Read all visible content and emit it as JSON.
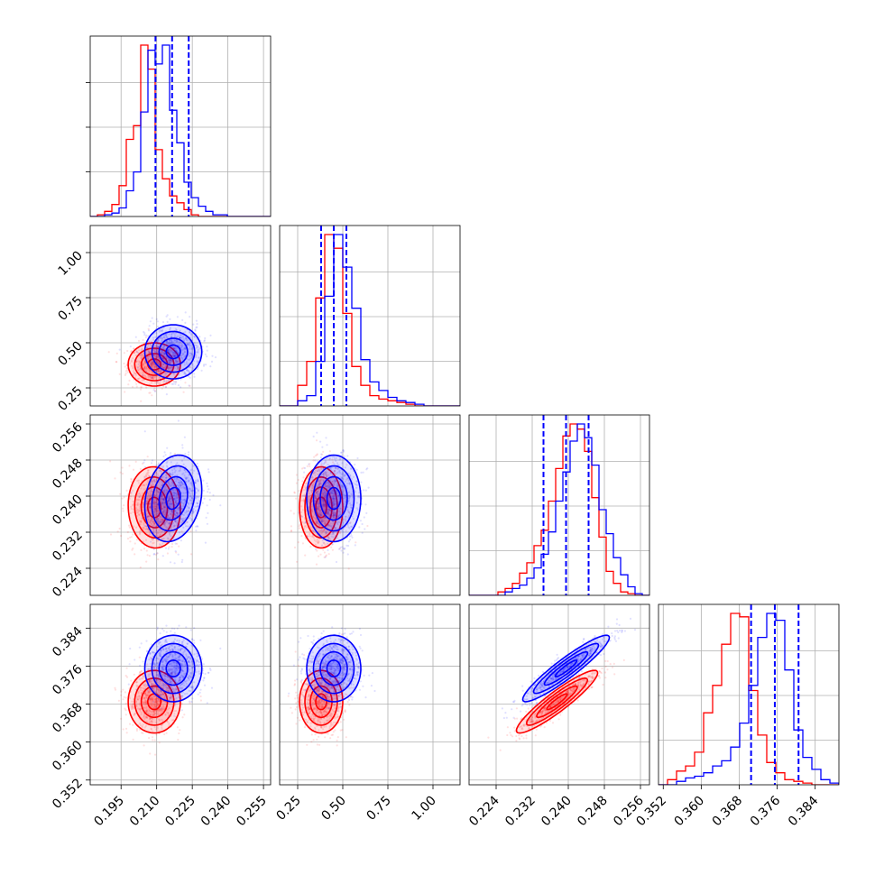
{
  "colors": {
    "red_series": "#ff0000",
    "blue_series": "#0000ff",
    "grid": "#b0b0b0"
  },
  "chart_data": {
    "type": "corner",
    "grid": true,
    "parameters": [
      {
        "ticks": [
          0.195,
          0.21,
          0.225,
          0.24,
          0.255
        ],
        "tick_labels": [
          "0.195",
          "0.210",
          "0.225",
          "0.240",
          "0.255"
        ],
        "range": [
          0.182,
          0.258
        ]
      },
      {
        "ticks": [
          0.25,
          0.5,
          0.75,
          1.0
        ],
        "tick_labels": [
          "0.25",
          "0.50",
          "0.75",
          "1.00"
        ],
        "range": [
          0.15,
          1.15
        ]
      },
      {
        "ticks": [
          0.224,
          0.232,
          0.24,
          0.248,
          0.256
        ],
        "tick_labels": [
          "0.224",
          "0.232",
          "0.240",
          "0.248",
          "0.256"
        ],
        "range": [
          0.218,
          0.258
        ]
      },
      {
        "ticks": [
          0.352,
          0.36,
          0.368,
          0.376,
          0.384
        ],
        "tick_labels": [
          "0.352",
          "0.360",
          "0.368",
          "0.376",
          "0.384"
        ],
        "range": [
          0.351,
          0.389
        ]
      }
    ],
    "series": [
      {
        "color": "#ff0000",
        "means": [
          0.209,
          0.38,
          0.2375,
          0.3685
        ],
        "sigmas": [
          0.0055,
          0.06,
          0.0045,
          0.0033
        ],
        "correlations": [
          [
            0,
            2,
            -0.05
          ],
          [
            2,
            3,
            0.92
          ]
        ],
        "histograms": [
          [
            0,
            0.01,
            0.03,
            0.07,
            0.18,
            0.45,
            0.53,
            1.0,
            0.86,
            0.39,
            0.22,
            0.12,
            0.08,
            0.04,
            0.01,
            0,
            0,
            0,
            0,
            0,
            0,
            0,
            0,
            0,
            0
          ],
          [
            0,
            0,
            0.12,
            0.26,
            0.63,
            1.0,
            0.92,
            0.54,
            0.23,
            0.12,
            0.06,
            0.04,
            0.03,
            0.02,
            0.01,
            0,
            0,
            0,
            0,
            0
          ],
          [
            0,
            0,
            0,
            0,
            0.02,
            0.04,
            0.07,
            0.13,
            0.19,
            0.29,
            0.38,
            0.55,
            0.74,
            0.93,
            1.0,
            0.97,
            0.84,
            0.57,
            0.34,
            0.14,
            0.07,
            0.02,
            0.01,
            0,
            0
          ],
          [
            0,
            0.03,
            0.08,
            0.11,
            0.19,
            0.42,
            0.58,
            0.82,
            1.0,
            0.98,
            0.55,
            0.29,
            0.13,
            0.07,
            0.03,
            0.02,
            0.01,
            0,
            0,
            0
          ]
        ]
      },
      {
        "color": "#0000ff",
        "means": [
          0.217,
          0.45,
          0.2395,
          0.3755
        ],
        "sigmas": [
          0.006,
          0.075,
          0.0048,
          0.0035
        ],
        "correlations": [
          [
            0,
            2,
            0.2
          ],
          [
            2,
            3,
            0.93
          ]
        ],
        "quantiles": [
          [
            0.2095,
            0.2165,
            0.2235
          ],
          [
            0.38,
            0.45,
            0.52
          ],
          [
            0.2345,
            0.2395,
            0.2445
          ],
          [
            0.3705,
            0.3755,
            0.3805
          ]
        ],
        "histograms": [
          [
            0,
            0,
            0.01,
            0.02,
            0.05,
            0.15,
            0.26,
            0.61,
            0.97,
            0.89,
            1.0,
            0.62,
            0.43,
            0.2,
            0.11,
            0.06,
            0.03,
            0.01,
            0.01,
            0,
            0,
            0,
            0,
            0,
            0
          ],
          [
            0,
            0,
            0.03,
            0.06,
            0.26,
            0.64,
            1.0,
            0.81,
            0.57,
            0.27,
            0.14,
            0.09,
            0.05,
            0.03,
            0.02,
            0.01,
            0,
            0,
            0,
            0
          ],
          [
            0,
            0,
            0,
            0,
            0,
            0.02,
            0.04,
            0.06,
            0.1,
            0.16,
            0.24,
            0.37,
            0.55,
            0.72,
            0.9,
            1.0,
            0.92,
            0.76,
            0.5,
            0.36,
            0.22,
            0.12,
            0.05,
            0.01,
            0
          ],
          [
            0,
            0,
            0.02,
            0.04,
            0.05,
            0.07,
            0.11,
            0.14,
            0.22,
            0.36,
            0.58,
            0.86,
            1.0,
            0.96,
            0.67,
            0.32,
            0.16,
            0.09,
            0.03,
            0.01
          ]
        ]
      }
    ]
  }
}
